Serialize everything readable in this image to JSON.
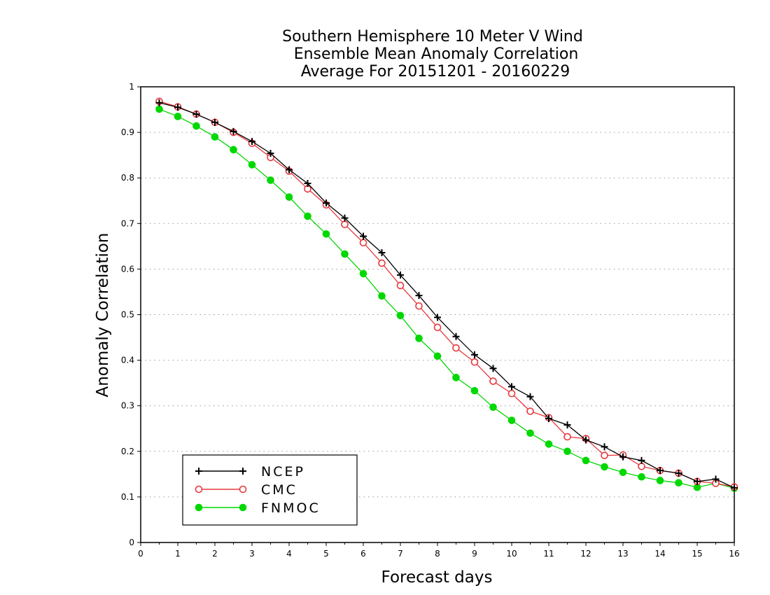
{
  "chart_data": {
    "type": "line",
    "title_lines": [
      "Southern Hemisphere 10 Meter V Wind",
      "Ensemble Mean Anomaly Correlation",
      "Average For 20151201 - 20160229"
    ],
    "xlabel": "Forecast days",
    "ylabel": "Anomaly Correlation",
    "xlim": [
      0,
      16
    ],
    "ylim": [
      0,
      1
    ],
    "x_ticks": [
      "0",
      "1",
      "2",
      "3",
      "4",
      "5",
      "6",
      "7",
      "8",
      "9",
      "10",
      "11",
      "12",
      "13",
      "14",
      "15",
      "16"
    ],
    "y_ticks": [
      "0",
      "0.1",
      "0.2",
      "0.3",
      "0.4",
      "0.5",
      "0.6",
      "0.7",
      "0.8",
      "0.9",
      "1"
    ],
    "grid": "horizontal dotted",
    "legend_position": "bottom-left",
    "x": [
      0.5,
      1,
      1.5,
      2,
      2.5,
      3,
      3.5,
      4,
      4.5,
      5,
      5.5,
      6,
      6.5,
      7,
      7.5,
      8,
      8.5,
      9,
      9.5,
      10,
      10.5,
      11,
      11.5,
      12,
      12.5,
      13,
      13.5,
      14,
      14.5,
      15,
      15.5,
      16
    ],
    "series": [
      {
        "name": "NCEP",
        "color": "#000000",
        "marker": "plus",
        "values": [
          0.965,
          0.955,
          0.94,
          0.922,
          0.902,
          0.88,
          0.854,
          0.818,
          0.788,
          0.745,
          0.712,
          0.672,
          0.636,
          0.587,
          0.542,
          0.494,
          0.452,
          0.412,
          0.382,
          0.342,
          0.32,
          0.272,
          0.258,
          0.225,
          0.21,
          0.188,
          0.18,
          0.158,
          0.152,
          0.134,
          0.139,
          0.12
        ]
      },
      {
        "name": "CMC",
        "color": "#e8383d",
        "marker": "hollow-circle",
        "values": [
          0.968,
          0.956,
          0.94,
          0.922,
          0.9,
          0.876,
          0.845,
          0.815,
          0.776,
          0.741,
          0.698,
          0.658,
          0.613,
          0.564,
          0.519,
          0.472,
          0.427,
          0.396,
          0.354,
          0.327,
          0.288,
          0.274,
          0.232,
          0.228,
          0.191,
          0.192,
          0.167,
          0.158,
          0.152,
          0.134,
          0.13,
          0.122
        ]
      },
      {
        "name": "FNMOC",
        "color": "#00d800",
        "marker": "filled-circle",
        "values": [
          0.951,
          0.935,
          0.914,
          0.89,
          0.862,
          0.829,
          0.795,
          0.758,
          0.716,
          0.677,
          0.633,
          0.59,
          0.541,
          0.498,
          0.448,
          0.409,
          0.362,
          0.333,
          0.297,
          0.268,
          0.24,
          0.216,
          0.2,
          0.18,
          0.166,
          0.154,
          0.144,
          0.136,
          0.131,
          0.121,
          0.13,
          0.119
        ]
      }
    ]
  }
}
